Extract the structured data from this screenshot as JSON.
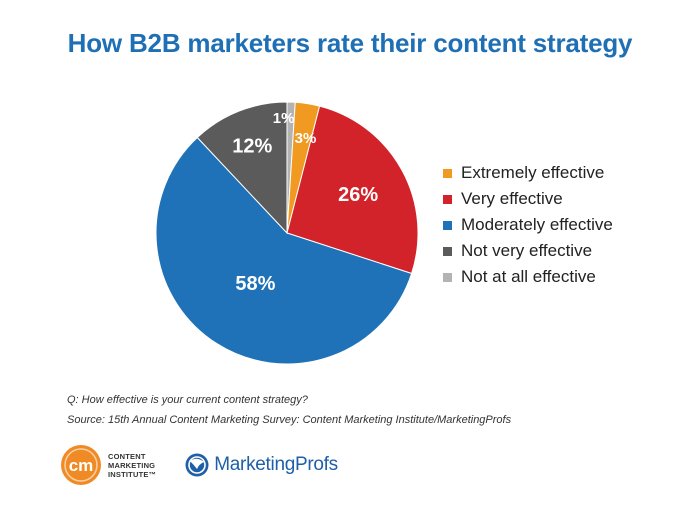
{
  "title": "How B2B marketers rate their content strategy",
  "chart_data": {
    "type": "pie",
    "title": "How B2B marketers rate their content strategy",
    "start_angle_deg": 0,
    "direction": "clockwise",
    "slices": [
      {
        "label": "Not at all effective",
        "value": 1,
        "display": "1%",
        "color": "#b3b3b3"
      },
      {
        "label": "Extremely effective",
        "value": 3,
        "display": "3%",
        "color": "#f09a22"
      },
      {
        "label": "Very effective",
        "value": 26,
        "display": "26%",
        "color": "#d2232a"
      },
      {
        "label": "Moderately effective",
        "value": 58,
        "display": "58%",
        "color": "#1f72b8"
      },
      {
        "label": "Not very effective",
        "value": 12,
        "display": "12%",
        "color": "#5b5b5b"
      }
    ],
    "legend": {
      "placement": "right",
      "items": [
        {
          "label": "Extremely effective",
          "color": "#f09a22"
        },
        {
          "label": "Very effective",
          "color": "#d2232a"
        },
        {
          "label": "Moderately effective",
          "color": "#1f72b8"
        },
        {
          "label": "Not very effective",
          "color": "#5b5b5b"
        },
        {
          "label": "Not at all effective",
          "color": "#b3b3b3"
        }
      ]
    }
  },
  "notes": {
    "question": "Q: How effective is your current content strategy?",
    "source": "Source: 15th Annual Content Marketing Survey: Content Marketing Institute/MarketingProfs"
  },
  "logos": {
    "cmi_mark": "cm",
    "cmi_line1": "CONTENT",
    "cmi_line2": "MARKETING",
    "cmi_line3": "INSTITUTE™",
    "cmi_color": "#f08a24",
    "marketingprofs": "MarketingProfs",
    "marketingprofs_color": "#1f5fa8"
  }
}
